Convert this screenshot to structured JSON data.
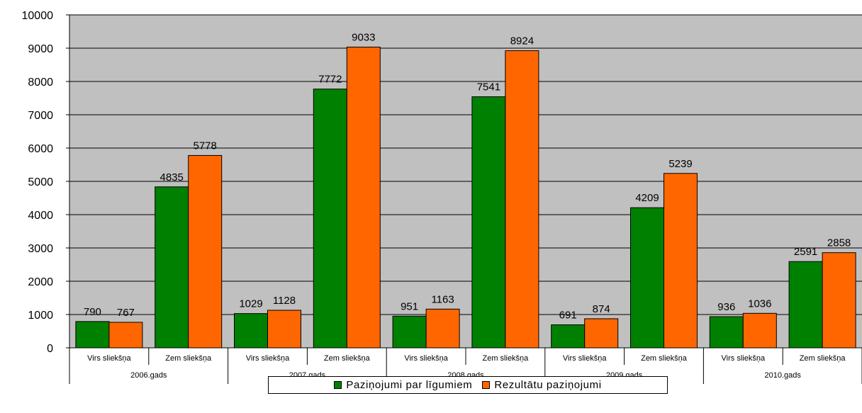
{
  "chart_data": {
    "type": "bar",
    "ylim": [
      0,
      10000
    ],
    "yticks": [
      "0",
      "1000",
      "2000",
      "3000",
      "4000",
      "5000",
      "6000",
      "7000",
      "8000",
      "9000",
      "10000"
    ],
    "grid": true,
    "legend_position": "bottom",
    "categories": [
      {
        "year": "2006.gads",
        "sub": "Virs sliekšņa"
      },
      {
        "year": "2006.gads",
        "sub": "Zem sliekšņa"
      },
      {
        "year": "2007.gads",
        "sub": "Virs sliekšņa"
      },
      {
        "year": "2007.gads",
        "sub": "Zem sliekšņa"
      },
      {
        "year": "2008.gads",
        "sub": "Virs sliekšņa"
      },
      {
        "year": "2008.gads",
        "sub": "Zem sliekšņa"
      },
      {
        "year": "2009.gads",
        "sub": "Virs sliekšņa"
      },
      {
        "year": "2009.gads",
        "sub": "Zem sliekšņa"
      },
      {
        "year": "2010.gads",
        "sub": "Virs sliekšņa"
      },
      {
        "year": "2010.gads",
        "sub": "Zem sliekšņa"
      }
    ],
    "groups": [
      "2006.gads",
      "2007.gads",
      "2008.gads",
      "2009.gads",
      "2010.gads"
    ],
    "series": [
      {
        "name": "Paziņojumi par līgumiem",
        "color": "#008000",
        "values": [
          790,
          4835,
          1029,
          7772,
          951,
          7541,
          691,
          4209,
          936,
          2591
        ]
      },
      {
        "name": "Rezultātu paziņojumi",
        "color": "#ff6600",
        "values": [
          767,
          5778,
          1128,
          9033,
          1163,
          8924,
          874,
          5239,
          1036,
          2858
        ]
      }
    ],
    "plot_background": "#c0c0c0"
  }
}
